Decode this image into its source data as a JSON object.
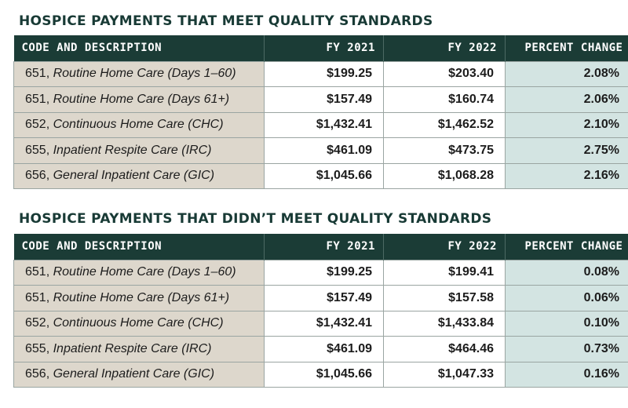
{
  "tables": [
    {
      "title": "HOSPICE PAYMENTS THAT MEET QUALITY STANDARDS",
      "headers": [
        "CODE AND DESCRIPTION",
        "FY 2021",
        "FY 2022",
        "PERCENT CHANGE"
      ],
      "rows": [
        {
          "code": "651, ",
          "desc": "Routine Home Care (Days 1–60)",
          "fy2021": "$199.25",
          "fy2022": "$203.40",
          "pct": "2.08%"
        },
        {
          "code": "651, ",
          "desc": "Routine Home Care (Days 61+)",
          "fy2021": "$157.49",
          "fy2022": "$160.74",
          "pct": "2.06%"
        },
        {
          "code": "652, ",
          "desc": "Continuous Home Care (CHC)",
          "fy2021": "$1,432.41",
          "fy2022": "$1,462.52",
          "pct": "2.10%"
        },
        {
          "code": "655, ",
          "desc": "Inpatient Respite Care (IRC)",
          "fy2021": "$461.09",
          "fy2022": "$473.75",
          "pct": "2.75%"
        },
        {
          "code": "656, ",
          "desc": "General Inpatient Care (GIC)",
          "fy2021": "$1,045.66",
          "fy2022": "$1,068.28",
          "pct": "2.16%"
        }
      ]
    },
    {
      "title": "HOSPICE PAYMENTS THAT DIDN’T MEET QUALITY STANDARDS",
      "headers": [
        "CODE AND DESCRIPTION",
        "FY 2021",
        "FY 2022",
        "PERCENT CHANGE"
      ],
      "rows": [
        {
          "code": "651, ",
          "desc": "Routine Home Care (Days 1–60)",
          "fy2021": "$199.25",
          "fy2022": "$199.41",
          "pct": "0.08%"
        },
        {
          "code": "651, ",
          "desc": "Routine Home Care (Days 61+)",
          "fy2021": "$157.49",
          "fy2022": "$157.58",
          "pct": "0.06%"
        },
        {
          "code": "652, ",
          "desc": "Continuous Home Care (CHC)",
          "fy2021": "$1,432.41",
          "fy2022": "$1,433.84",
          "pct": "0.10%"
        },
        {
          "code": "655, ",
          "desc": "Inpatient Respite Care (IRC)",
          "fy2021": "$461.09",
          "fy2022": "$464.46",
          "pct": "0.73%"
        },
        {
          "code": "656, ",
          "desc": "General Inpatient Care (GIC)",
          "fy2021": "$1,045.66",
          "fy2022": "$1,047.33",
          "pct": "0.16%"
        }
      ]
    }
  ],
  "colors": {
    "header_bg": "#1b3c36",
    "title_text": "#183a35",
    "description_bg": "#ddd7cc",
    "percent_bg": "#d3e4e2"
  }
}
